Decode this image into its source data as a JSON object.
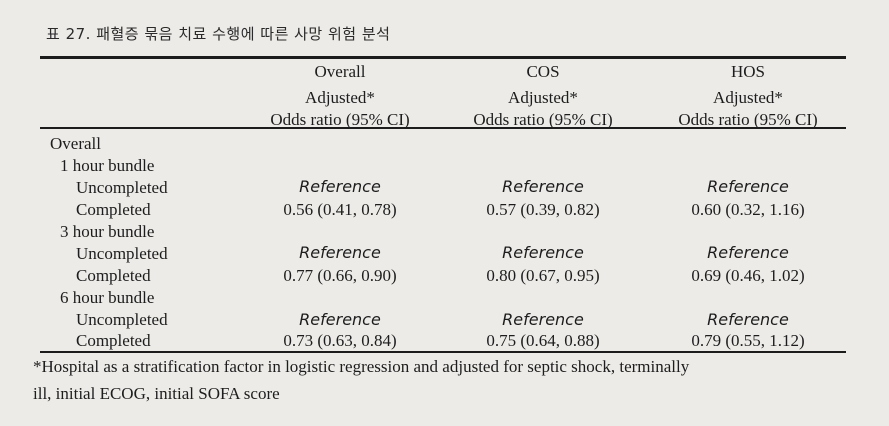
{
  "table": {
    "caption": "표 27. 패혈증 묶음 치료 수행에 따른 사망 위험 분석",
    "columns": [
      {
        "group": "Overall",
        "line1": "Adjusted*",
        "line2": "Odds ratio (95% CI)"
      },
      {
        "group": "COS",
        "line1": "Adjusted*",
        "line2": "Odds ratio (95% CI)"
      },
      {
        "group": "HOS",
        "line1": "Adjusted*",
        "line2": "Odds ratio (95% CI)"
      }
    ],
    "row_labels": {
      "overall": "Overall",
      "b1": "1 hour bundle",
      "b1_unc": "Uncompleted",
      "b1_comp": "Completed",
      "b3": "3 hour bundle",
      "b3_unc": "Uncompleted",
      "b3_comp": "Completed",
      "b6": "6 hour bundle",
      "b6_unc": "Uncompleted",
      "b6_comp": "Completed"
    },
    "reference_label": "Reference",
    "values": {
      "b1_comp": [
        "0.56 (0.41, 0.78)",
        "0.57 (0.39, 0.82)",
        "0.60 (0.32, 1.16)"
      ],
      "b3_comp": [
        "0.77 (0.66, 0.90)",
        "0.80 (0.67, 0.95)",
        "0.69 (0.46, 1.02)"
      ],
      "b6_comp": [
        "0.73 (0.63, 0.84)",
        "0.75 (0.64, 0.88)",
        "0.79 (0.55, 1.12)"
      ]
    },
    "footnote_line1": "*Hospital as a stratification factor in logistic regression and adjusted for septic shock, terminally",
    "footnote_line2": "ill, initial ECOG, initial SOFA score"
  }
}
